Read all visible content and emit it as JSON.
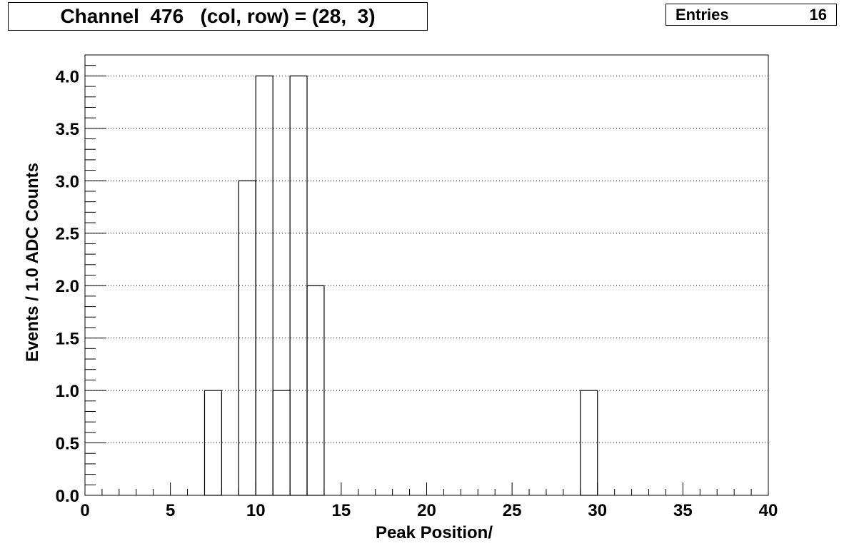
{
  "title": "Channel  476   (col, row) = (28,  3)",
  "stats": {
    "label": "Entries",
    "value": "16"
  },
  "chart_data": {
    "type": "bar",
    "style": "step-histogram",
    "xlabel": "Peak Position/",
    "ylabel": "Events / 1.0 ADC Counts",
    "xlim": [
      0,
      40
    ],
    "ylim": [
      0,
      4.2
    ],
    "grid": "horizontal-dotted",
    "x_ticks": [
      0,
      5,
      10,
      15,
      20,
      25,
      30,
      35,
      40
    ],
    "x_tick_labels": [
      "0",
      "5",
      "10",
      "15",
      "20",
      "25",
      "30",
      "35",
      "40"
    ],
    "y_ticks": [
      0,
      0.5,
      1,
      1.5,
      2,
      2.5,
      3,
      3.5,
      4
    ],
    "y_tick_labels": [
      "0.0",
      "0.5",
      "1.0",
      "1.5",
      "2.0",
      "2.5",
      "3.0",
      "3.5",
      "4.0"
    ],
    "bin_width": 1,
    "bins": [
      {
        "x0": 7,
        "x1": 8,
        "value": 1
      },
      {
        "x0": 9,
        "x1": 10,
        "value": 3
      },
      {
        "x0": 10,
        "x1": 11,
        "value": 4
      },
      {
        "x0": 11,
        "x1": 12,
        "value": 1
      },
      {
        "x0": 12,
        "x1": 13,
        "value": 4
      },
      {
        "x0": 13,
        "x1": 14,
        "value": 2
      },
      {
        "x0": 29,
        "x1": 30,
        "value": 1
      }
    ],
    "colors": {
      "line": "#000000",
      "grid": "#000000",
      "background": "#ffffff"
    }
  }
}
